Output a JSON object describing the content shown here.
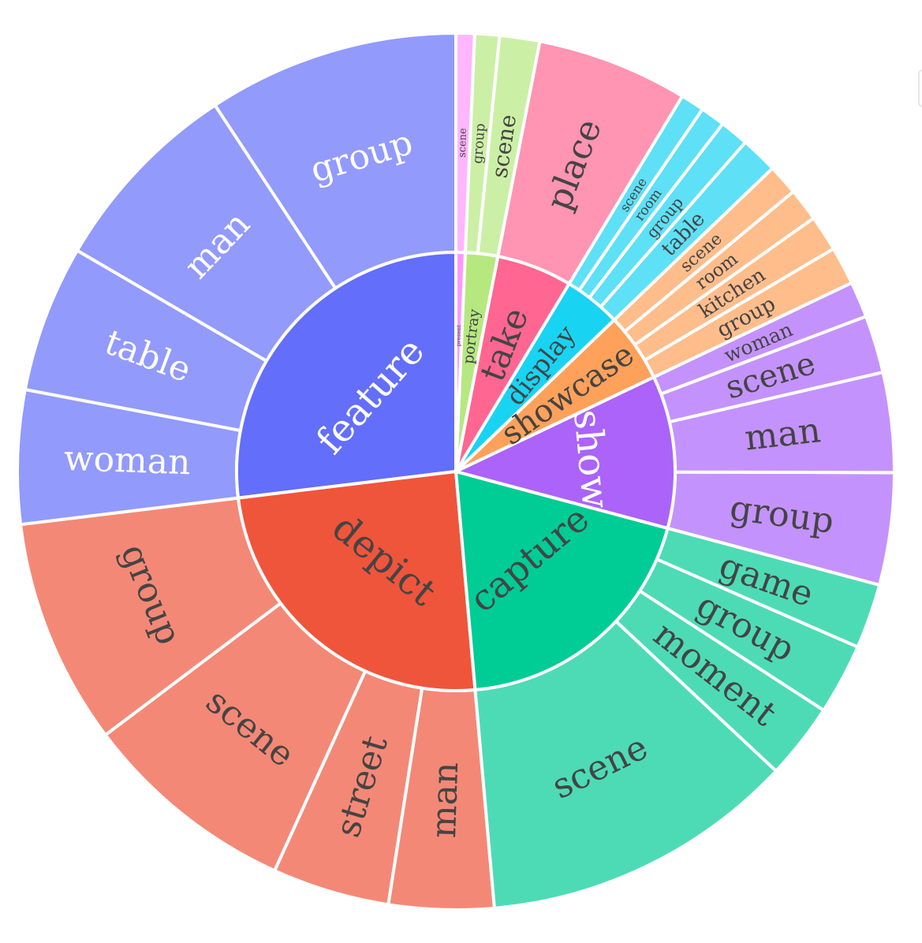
{
  "chart_data": {
    "type": "sunburst",
    "colors": {
      "feature": "#636efa",
      "depict": "#ef553b",
      "capture": "#00cc96",
      "show": "#ab63fa",
      "showcase": "#ffa15a",
      "display": "#19d3f3",
      "take": "#ff6692",
      "portray": "#b6e880",
      "present": "#ff97ff"
    },
    "hierarchy": [
      {
        "name": "feature",
        "children": [
          {
            "name": "group",
            "value": 1222
          },
          {
            "name": "man",
            "value": 968
          },
          {
            "name": "table",
            "value": 715
          },
          {
            "name": "woman",
            "value": 650
          }
        ]
      },
      {
        "name": "depict",
        "children": [
          {
            "name": "group",
            "value": 1100
          },
          {
            "name": "scene",
            "value": 1050
          },
          {
            "name": "street",
            "value": 570
          },
          {
            "name": "man",
            "value": 510
          }
        ]
      },
      {
        "name": "capture",
        "children": [
          {
            "name": "scene",
            "value": 1535
          },
          {
            "name": "moment",
            "value": 370
          },
          {
            "name": "group",
            "value": 345
          },
          {
            "name": "game",
            "value": 315
          }
        ]
      },
      {
        "name": "show",
        "children": [
          {
            "name": "group",
            "value": 545
          },
          {
            "name": "man",
            "value": 485
          },
          {
            "name": "scene",
            "value": 280
          },
          {
            "name": "woman",
            "value": 175
          }
        ]
      },
      {
        "name": "showcase",
        "children": [
          {
            "name": "group",
            "value": 185
          },
          {
            "name": "kitchen",
            "value": 175
          },
          {
            "name": "room",
            "value": 160
          },
          {
            "name": "scene",
            "value": 150
          }
        ]
      },
      {
        "name": "display",
        "children": [
          {
            "name": "table",
            "value": 180
          },
          {
            "name": "group",
            "value": 140
          },
          {
            "name": "room",
            "value": 120
          },
          {
            "name": "scene",
            "value": 115
          }
        ]
      },
      {
        "name": "take",
        "children": [
          {
            "name": "place",
            "value": 735
          }
        ]
      },
      {
        "name": "portray",
        "children": [
          {
            "name": "scene",
            "value": 195
          },
          {
            "name": "group",
            "value": 120
          }
        ]
      },
      {
        "name": "present",
        "children": [
          {
            "name": "scene",
            "value": 90
          }
        ]
      }
    ]
  }
}
